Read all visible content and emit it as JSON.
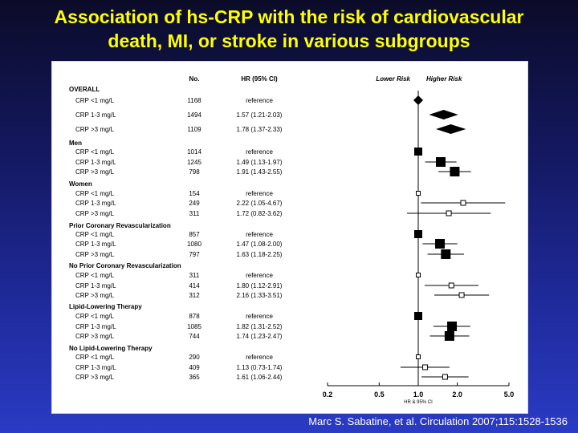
{
  "title": {
    "line1": "Association of hs-CRP with the risk of cardiovascular",
    "line2": "death, MI, or stroke in various subgroups"
  },
  "citation": "Marc S. Sabatine, et al. Circulation 2007;115:1528-1536",
  "colors": {
    "title": "#ffff00",
    "background_top": "#0b0b28",
    "background_bottom": "#2a3bc4",
    "panel": "#ffffff",
    "marks": "#000000"
  },
  "chart_data": {
    "type": "forest",
    "headers": {
      "no": "No.",
      "hr": "HR (95% CI)",
      "lower": "Lower Risk",
      "higher": "Higher Risk"
    },
    "xlabel": "HR & 95% CI",
    "x_scale": "log",
    "xlim": [
      0.2,
      5.0
    ],
    "xticks": [
      0.2,
      0.5,
      1.0,
      2.0,
      5.0
    ],
    "xtick_labels": [
      "0.2",
      "0.5",
      "1.0",
      "2.0",
      "5.0"
    ],
    "reference_line": 1.0,
    "groups": [
      {
        "name": "OVERALL",
        "marker": "diamond",
        "rows": [
          {
            "label": "CRP <1 mg/L",
            "n": "1168",
            "text": "reference",
            "hr": 1.0,
            "lo": null,
            "hi": null
          },
          {
            "label": "CRP 1-3 mg/L",
            "n": "1494",
            "text": "1.57 (1.21-2.03)",
            "hr": 1.57,
            "lo": 1.21,
            "hi": 2.03
          },
          {
            "label": "CRP >3 mg/L",
            "n": "1109",
            "text": "1.78 (1.37-2.33)",
            "hr": 1.78,
            "lo": 1.37,
            "hi": 2.33
          }
        ]
      },
      {
        "name": "Men",
        "marker": "filled",
        "rows": [
          {
            "label": "CRP <1 mg/L",
            "n": "1014",
            "text": "reference",
            "hr": 1.0,
            "lo": null,
            "hi": null
          },
          {
            "label": "CRP 1-3 mg/L",
            "n": "1245",
            "text": "1.49 (1.13-1.97)",
            "hr": 1.49,
            "lo": 1.13,
            "hi": 1.97
          },
          {
            "label": "CRP >3 mg/L",
            "n": "798",
            "text": "1.91 (1.43-2.55)",
            "hr": 1.91,
            "lo": 1.43,
            "hi": 2.55
          }
        ]
      },
      {
        "name": "Women",
        "marker": "open",
        "rows": [
          {
            "label": "CRP <1 mg/L",
            "n": "154",
            "text": "reference",
            "hr": 1.0,
            "lo": null,
            "hi": null
          },
          {
            "label": "CRP 1-3 mg/L",
            "n": "249",
            "text": "2.22 (1.05-4.67)",
            "hr": 2.22,
            "lo": 1.05,
            "hi": 4.67
          },
          {
            "label": "CRP >3 mg/L",
            "n": "311",
            "text": "1.72 (0.82-3.62)",
            "hr": 1.72,
            "lo": 0.82,
            "hi": 3.62
          }
        ]
      },
      {
        "name": "Prior Coronary Revascularization",
        "marker": "filled",
        "rows": [
          {
            "label": "CRP <1 mg/L",
            "n": "857",
            "text": "reference",
            "hr": 1.0,
            "lo": null,
            "hi": null
          },
          {
            "label": "CRP 1-3 mg/L",
            "n": "1080",
            "text": "1.47 (1.08-2.00)",
            "hr": 1.47,
            "lo": 1.08,
            "hi": 2.0
          },
          {
            "label": "CRP >3 mg/L",
            "n": "797",
            "text": "1.63 (1.18-2.25)",
            "hr": 1.63,
            "lo": 1.18,
            "hi": 2.25
          }
        ]
      },
      {
        "name": "No Prior Coronary Revascularization",
        "marker": "open",
        "rows": [
          {
            "label": "CRP <1 mg/L",
            "n": "311",
            "text": "reference",
            "hr": 1.0,
            "lo": null,
            "hi": null
          },
          {
            "label": "CRP 1-3 mg/L",
            "n": "414",
            "text": "1.80 (1.12-2.91)",
            "hr": 1.8,
            "lo": 1.12,
            "hi": 2.91
          },
          {
            "label": "CRP >3 mg/L",
            "n": "312",
            "text": "2.16 (1.33-3.51)",
            "hr": 2.16,
            "lo": 1.33,
            "hi": 3.51
          }
        ]
      },
      {
        "name": "Lipid-Lowering Therapy",
        "marker": "filled",
        "rows": [
          {
            "label": "CRP <1 mg/L",
            "n": "878",
            "text": "reference",
            "hr": 1.0,
            "lo": null,
            "hi": null
          },
          {
            "label": "CRP 1-3 mg/L",
            "n": "1085",
            "text": "1.82 (1.31-2.52)",
            "hr": 1.82,
            "lo": 1.31,
            "hi": 2.52
          },
          {
            "label": "CRP >3 mg/L",
            "n": "744",
            "text": "1.74 (1.23-2.47)",
            "hr": 1.74,
            "lo": 1.23,
            "hi": 2.47
          }
        ]
      },
      {
        "name": "No Lipid-Lowering Therapy",
        "marker": "open",
        "rows": [
          {
            "label": "CRP <1 mg/L",
            "n": "290",
            "text": "reference",
            "hr": 1.0,
            "lo": null,
            "hi": null
          },
          {
            "label": "CRP 1-3 mg/L",
            "n": "409",
            "text": "1.13 (0.73-1.74)",
            "hr": 1.13,
            "lo": 0.73,
            "hi": 1.74
          },
          {
            "label": "CRP >3 mg/L",
            "n": "365",
            "text": "1.61 (1.06-2.44)",
            "hr": 1.61,
            "lo": 1.06,
            "hi": 2.44
          }
        ]
      }
    ]
  }
}
